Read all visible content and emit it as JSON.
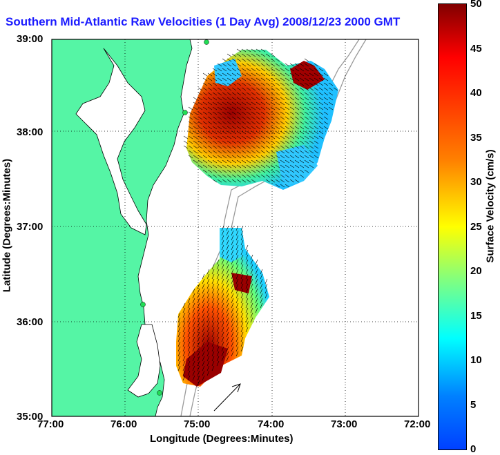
{
  "title": "Southern Mid-Atlantic Raw Velocities (1 Day Avg) 2008/12/23 2000 GMT",
  "axes": {
    "xlabel": "Longitude (Degrees:Minutes)",
    "ylabel": "Latitude (Degrees:Minutes)",
    "xticks": [
      "77:00",
      "76:00",
      "75:00",
      "74:00",
      "73:00",
      "72:00"
    ],
    "yticks": [
      "39:00",
      "38:00",
      "37:00",
      "36:00",
      "35:00"
    ]
  },
  "colorbar": {
    "label": "Surface Velocity (cm/s)",
    "ticks": [
      "50",
      "45",
      "40",
      "35",
      "30",
      "25",
      "20",
      "15",
      "10",
      "5",
      "0"
    ]
  },
  "colors": {
    "land": "#55f5a5",
    "title": "#1a1aff"
  }
}
